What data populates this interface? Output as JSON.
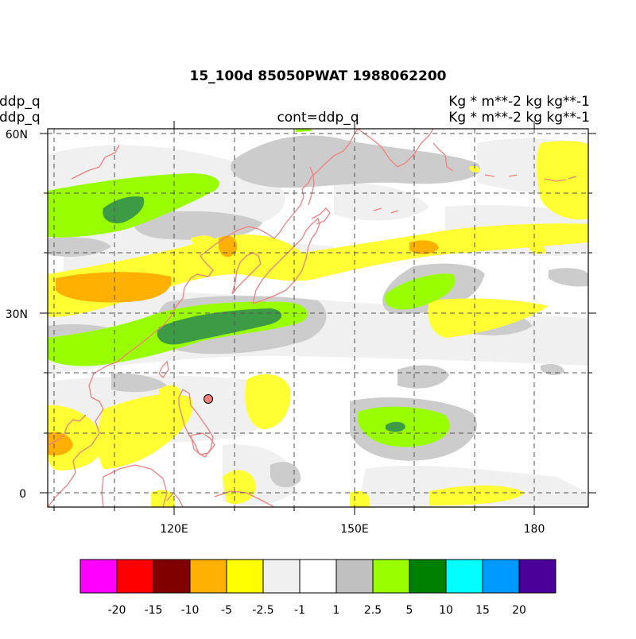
{
  "header": {
    "title": "15_100d 85050PWAT  1988062200",
    "left_line1": "ddp_q",
    "left_line2": "ddp_q",
    "center_label": "cont=ddp_q",
    "right_line1": "Kg  * m**-2 kg kg**-1",
    "right_line2": "Kg  * m**-2 kg kg**-1"
  },
  "map": {
    "lon_labels": [
      "120E",
      "150E",
      "180"
    ],
    "lat_labels": [
      "60N",
      "30N",
      "0"
    ],
    "colors": {
      "neg_20": "#ff00ff",
      "neg_15": "#ff0000",
      "neg_10": "#800000",
      "neg_5": "#ffb000",
      "neg_2_5": "#ffff33",
      "neg_1": "#f0f0f0",
      "pos_1": "#ffffff",
      "pos_2_5": "#cccccc",
      "pos_5": "#99ff00",
      "pos_10": "#3d9b45",
      "coast": "#f08080"
    }
  },
  "colorbar": {
    "colors": [
      "#ff00ff",
      "#ff0000",
      "#800000",
      "#ffb000",
      "#ffff00",
      "#f0f0f0",
      "#ffffff",
      "#c0c0c0",
      "#99ff00",
      "#008000",
      "#00ffff",
      "#0099ff",
      "#4b0099"
    ],
    "labels": [
      "-20",
      "-15",
      "-10",
      "-5",
      "-2.5",
      "-1",
      "1",
      "2.5",
      "5",
      "10",
      "15",
      "20"
    ]
  }
}
